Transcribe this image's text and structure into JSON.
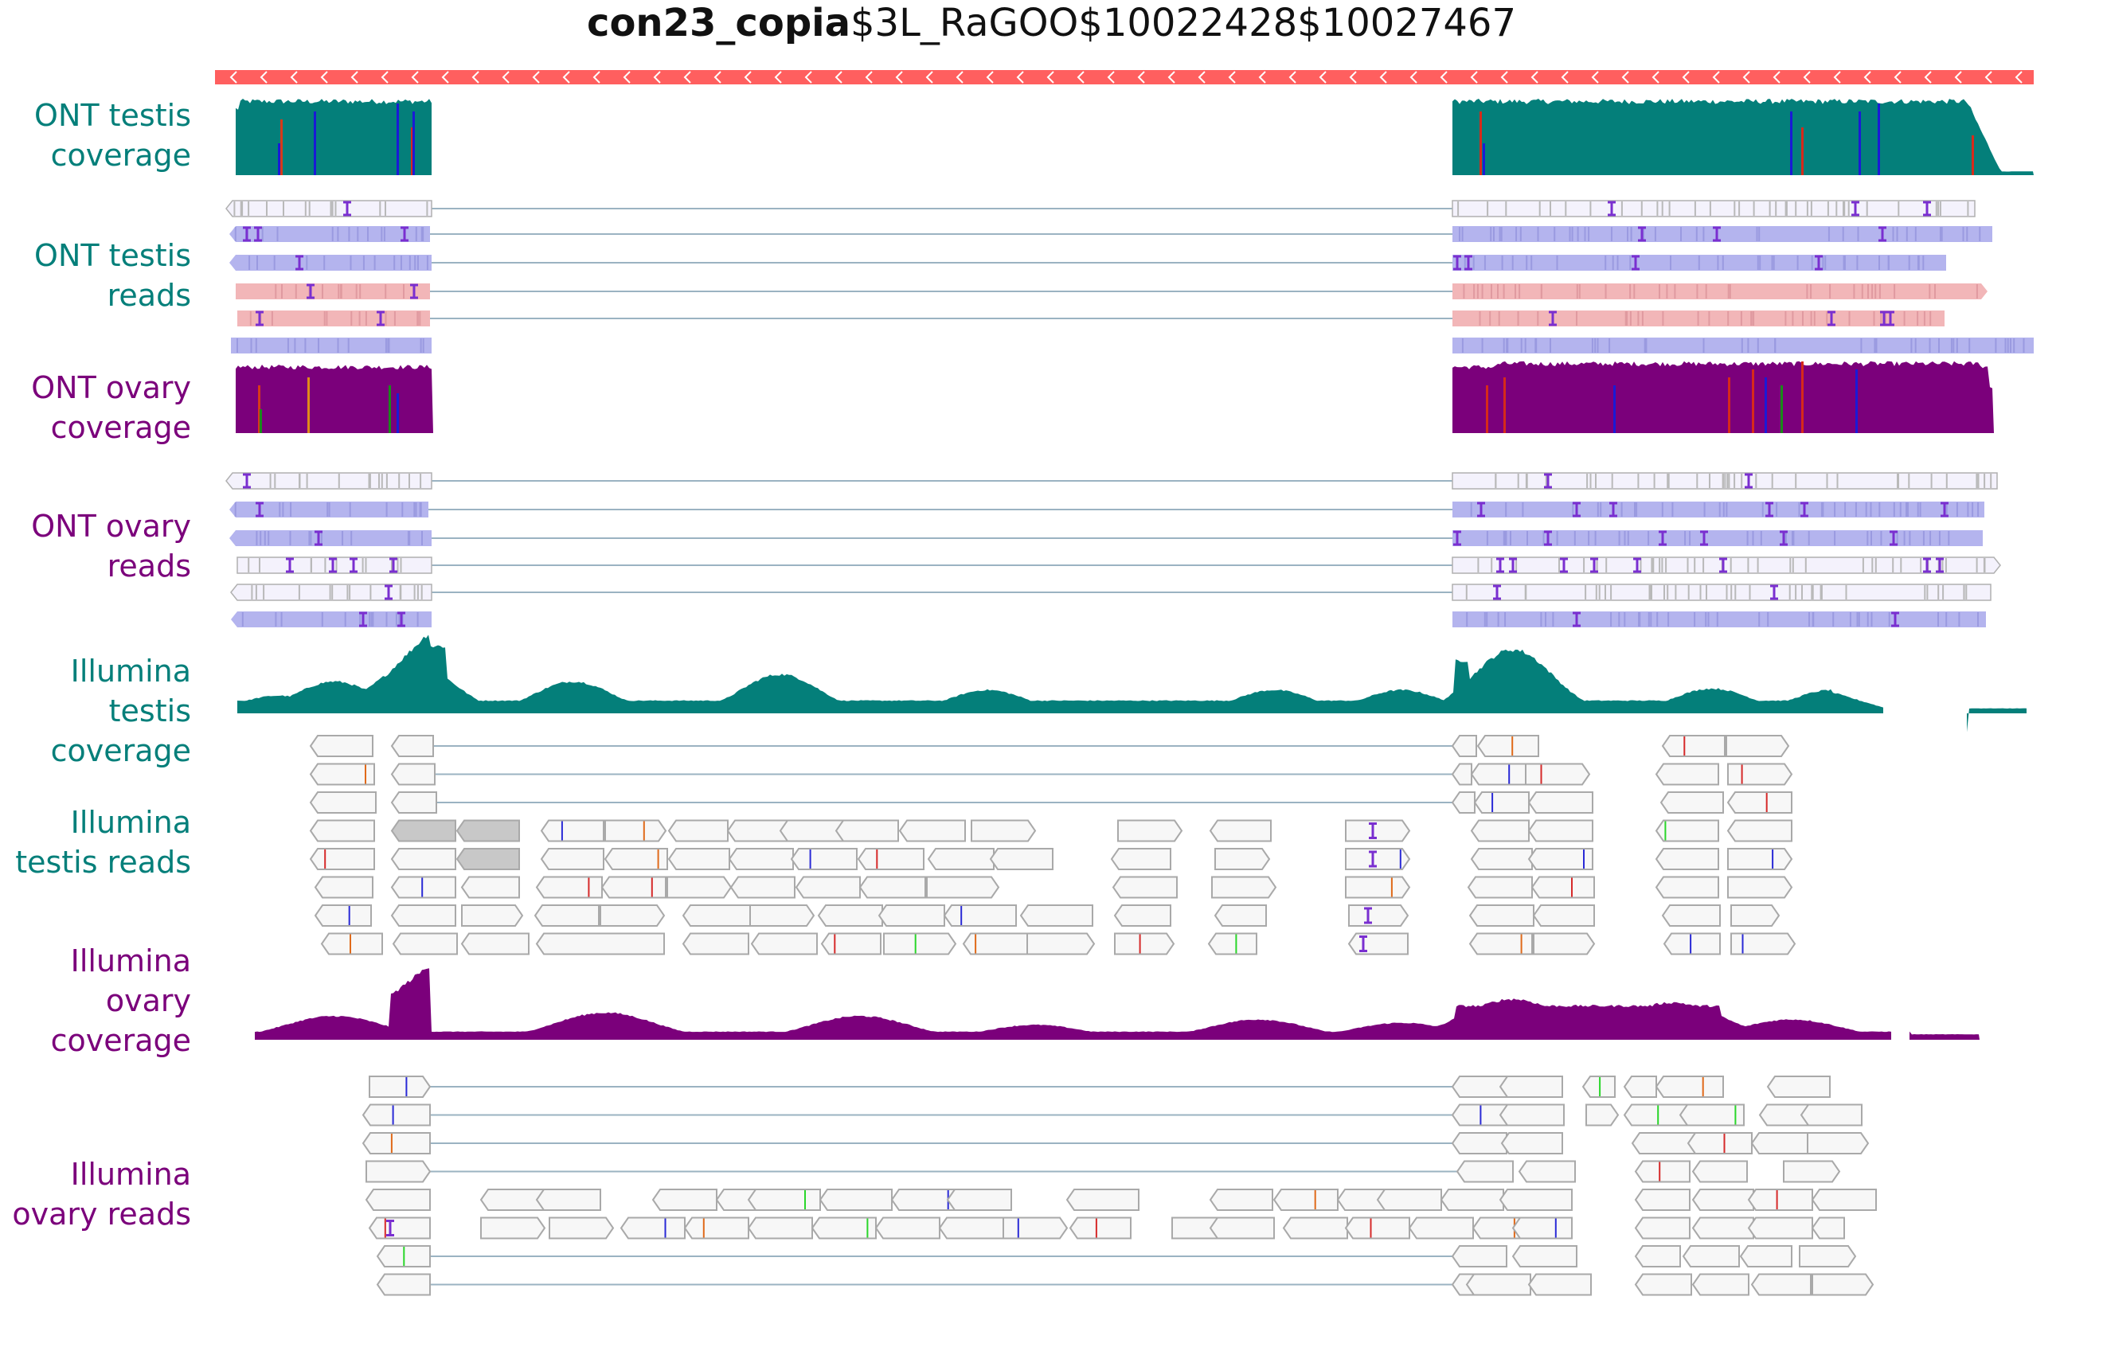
{
  "title": {
    "bold": "con23_copia",
    "rest": "$3L_RaGOO$10022428$10027467"
  },
  "colors": {
    "teal": "#047f7a",
    "purple": "#7b007b",
    "te_bar": "#ff5f5f",
    "read_neutral": "#f4f2fc",
    "read_fwd": "#b4b4ee",
    "read_rev": "#f2b6b8",
    "illumina_read": "#f7f7f7",
    "split_line": "#9bb3c2",
    "insertion": "#7a2fd0"
  },
  "tracks": [
    {
      "id": "ont-testis-coverage",
      "label": [
        "ONT testis",
        "coverage"
      ],
      "color": "teal"
    },
    {
      "id": "ont-testis-reads",
      "label": [
        "ONT testis",
        "reads"
      ],
      "color": "teal"
    },
    {
      "id": "ont-ovary-coverage",
      "label": [
        "ONT ovary",
        "coverage"
      ],
      "color": "purple"
    },
    {
      "id": "ont-ovary-reads",
      "label": [
        "ONT ovary",
        "reads"
      ],
      "color": "purple"
    },
    {
      "id": "illumina-testis-coverage",
      "label": [
        "Illumina",
        "testis",
        "coverage"
      ],
      "color": "teal"
    },
    {
      "id": "illumina-testis-reads",
      "label": [
        "Illumina",
        "testis reads"
      ],
      "color": "teal"
    },
    {
      "id": "illumina-ovary-coverage",
      "label": [
        "Illumina",
        "ovary",
        "coverage"
      ],
      "color": "purple"
    },
    {
      "id": "illumina-ovary-reads",
      "label": [
        "Illumina",
        "ovary reads"
      ],
      "color": "purple"
    }
  ]
}
